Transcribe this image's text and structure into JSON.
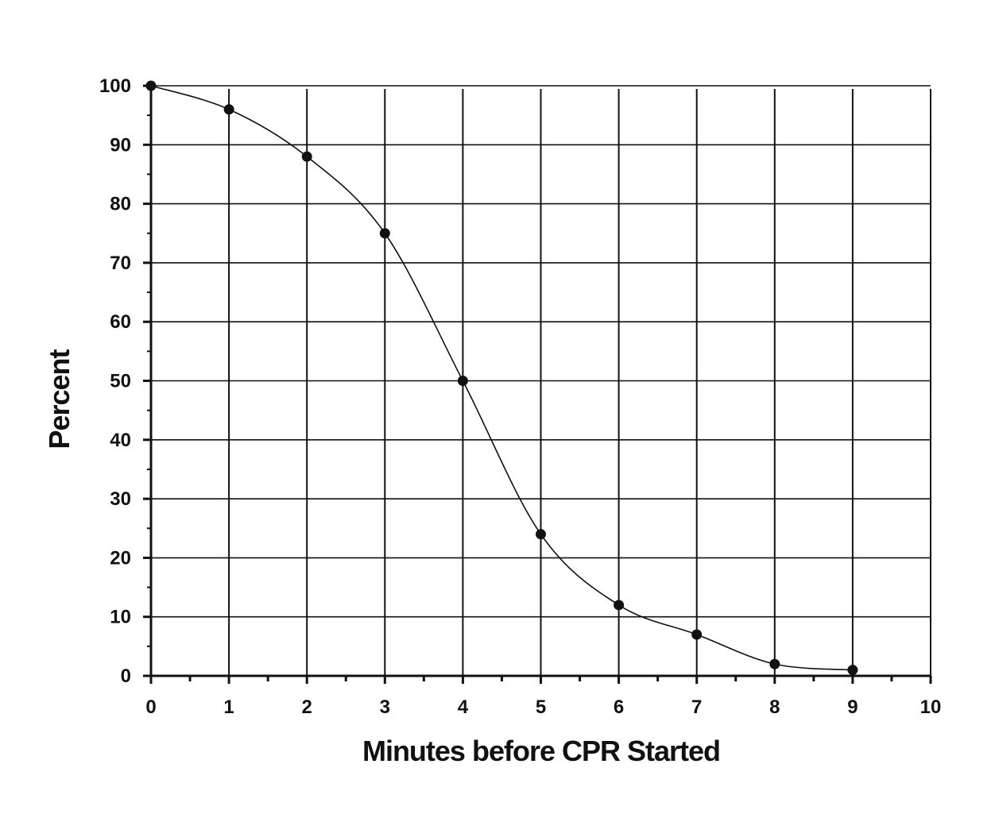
{
  "chart_data": {
    "type": "line",
    "title": "",
    "xlabel": "Minutes before CPR Started",
    "ylabel": "Percent",
    "x": [
      0,
      1,
      2,
      3,
      4,
      5,
      6,
      7,
      8,
      9
    ],
    "series": [
      {
        "values": [
          100,
          96,
          88,
          75,
          50,
          24,
          12,
          7,
          2,
          1
        ]
      }
    ],
    "xlim": [
      0,
      10
    ],
    "ylim": [
      0,
      100
    ],
    "xticks": [
      "0",
      "1",
      "2",
      "3",
      "4",
      "5",
      "6",
      "7",
      "8",
      "9",
      "10"
    ],
    "yticks": [
      "0",
      "10",
      "20",
      "30",
      "40",
      "50",
      "60",
      "70",
      "80",
      "90",
      "100"
    ],
    "grid": true,
    "legend": "none",
    "colors": {
      "line": "#111111",
      "grid": "#111111",
      "marker": "#111111"
    }
  }
}
